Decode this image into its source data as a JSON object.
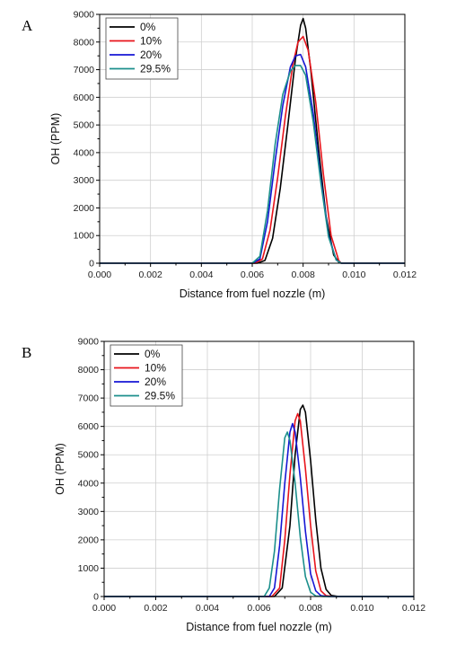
{
  "chart_data": [
    {
      "type": "line",
      "panel_label": "A",
      "xlabel": "Distance from fuel nozzle (m)",
      "ylabel": "OH (PPM)",
      "xlim": [
        0.0,
        0.012
      ],
      "ylim": [
        0,
        9000
      ],
      "x_ticks": [
        "0.000",
        "0.002",
        "0.004",
        "0.006",
        "0.008",
        "0.010",
        "0.012"
      ],
      "y_ticks": [
        "0",
        "1000",
        "2000",
        "3000",
        "4000",
        "5000",
        "6000",
        "7000",
        "8000",
        "9000"
      ],
      "grid": true,
      "legend_position": "top-left",
      "series": [
        {
          "name": "0%",
          "color": "#000000",
          "x": [
            0.0,
            0.0062,
            0.0065,
            0.0068,
            0.0071,
            0.0074,
            0.0077,
            0.0079,
            0.008,
            0.0081,
            0.0083,
            0.0086,
            0.0089,
            0.0092,
            0.0094,
            0.0095,
            0.012
          ],
          "y": [
            0,
            0,
            100,
            900,
            2700,
            5000,
            7400,
            8600,
            8850,
            8500,
            7000,
            4200,
            1700,
            300,
            40,
            0,
            0
          ]
        },
        {
          "name": "10%",
          "color": "#e8141b",
          "x": [
            0.0,
            0.0061,
            0.0064,
            0.0067,
            0.007,
            0.0073,
            0.0076,
            0.0078,
            0.008,
            0.0082,
            0.0085,
            0.0088,
            0.0091,
            0.0094,
            0.0095,
            0.012
          ],
          "y": [
            0,
            0,
            150,
            1200,
            3100,
            5300,
            7200,
            8000,
            8200,
            7700,
            5800,
            3200,
            1000,
            100,
            0,
            0
          ]
        },
        {
          "name": "20%",
          "color": "#1616d4",
          "x": [
            0.0,
            0.006,
            0.0063,
            0.0066,
            0.0069,
            0.0072,
            0.0075,
            0.0077,
            0.0079,
            0.0081,
            0.0084,
            0.0087,
            0.009,
            0.0093,
            0.0095,
            0.012
          ],
          "y": [
            0,
            0,
            150,
            1500,
            3700,
            5700,
            7100,
            7500,
            7550,
            7100,
            5400,
            3000,
            1000,
            120,
            0,
            0
          ]
        },
        {
          "name": "29.5%",
          "color": "#1b8f8c",
          "x": [
            0.0,
            0.006,
            0.0063,
            0.0066,
            0.0069,
            0.0072,
            0.0075,
            0.0077,
            0.0079,
            0.0081,
            0.0084,
            0.0087,
            0.009,
            0.0093,
            0.0095,
            0.012
          ],
          "y": [
            0,
            0,
            250,
            1900,
            4300,
            6100,
            6950,
            7150,
            7150,
            6800,
            5100,
            2900,
            950,
            120,
            0,
            0
          ]
        }
      ]
    },
    {
      "type": "line",
      "panel_label": "B",
      "xlabel": "Distance from fuel nozzle (m)",
      "ylabel": "OH (PPM)",
      "xlim": [
        0.0,
        0.012
      ],
      "ylim": [
        0,
        9000
      ],
      "x_ticks": [
        "0.000",
        "0.002",
        "0.004",
        "0.006",
        "0.008",
        "0.010",
        "0.012"
      ],
      "y_ticks": [
        "0",
        "1000",
        "2000",
        "3000",
        "4000",
        "5000",
        "6000",
        "7000",
        "8000",
        "9000"
      ],
      "grid": true,
      "legend_position": "top-left",
      "series": [
        {
          "name": "0%",
          "color": "#000000",
          "x": [
            0.0,
            0.0066,
            0.0069,
            0.0072,
            0.0074,
            0.0076,
            0.0077,
            0.0078,
            0.008,
            0.0082,
            0.0084,
            0.0086,
            0.0088,
            0.0091,
            0.012
          ],
          "y": [
            0,
            0,
            300,
            2500,
            5000,
            6600,
            6750,
            6500,
            4800,
            2700,
            1000,
            250,
            40,
            0,
            0
          ]
        },
        {
          "name": "10%",
          "color": "#e8141b",
          "x": [
            0.0,
            0.0065,
            0.0068,
            0.007,
            0.0072,
            0.0074,
            0.0075,
            0.0076,
            0.0078,
            0.008,
            0.0082,
            0.0084,
            0.0086,
            0.0089,
            0.012
          ],
          "y": [
            0,
            0,
            300,
            2000,
            4300,
            6200,
            6450,
            6200,
            4500,
            2500,
            900,
            200,
            30,
            0,
            0
          ]
        },
        {
          "name": "20%",
          "color": "#1616d4",
          "x": [
            0.0,
            0.0064,
            0.0066,
            0.0068,
            0.007,
            0.0072,
            0.0073,
            0.0074,
            0.0076,
            0.0078,
            0.008,
            0.0082,
            0.0084,
            0.0087,
            0.012
          ],
          "y": [
            0,
            0,
            300,
            1800,
            4000,
            5800,
            6100,
            5800,
            4200,
            2300,
            800,
            200,
            30,
            0,
            0
          ]
        },
        {
          "name": "29.5%",
          "color": "#1b8f8c",
          "x": [
            0.0,
            0.0062,
            0.0064,
            0.0066,
            0.0068,
            0.007,
            0.0071,
            0.0072,
            0.0074,
            0.0076,
            0.0078,
            0.008,
            0.0082,
            0.0085,
            0.012
          ],
          "y": [
            0,
            0,
            300,
            1600,
            3800,
            5600,
            5800,
            5500,
            4000,
            2100,
            700,
            150,
            20,
            0,
            0
          ]
        }
      ]
    }
  ]
}
